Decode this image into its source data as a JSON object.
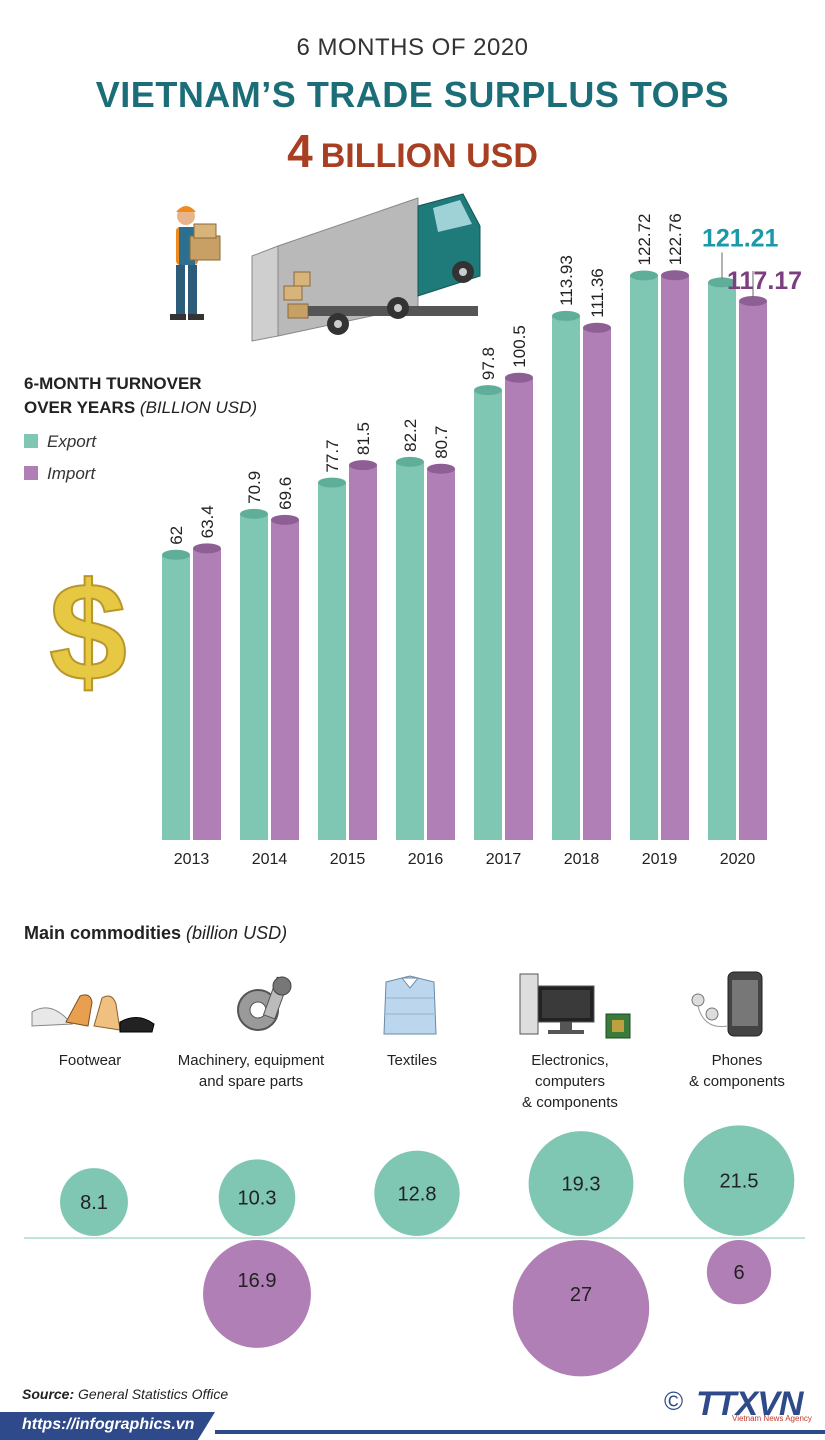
{
  "header": {
    "subtitle": "6 MONTHS OF 2020",
    "title": "VIETNAM’S TRADE SURPLUS  TOPS",
    "highlight_number": "4",
    "highlight_text": "BILLION USD"
  },
  "chart_data": {
    "type": "bar",
    "title": "6-MONTH TURNOVER OVER YEARS",
    "title_line1": "6-MONTH TURNOVER",
    "title_line2": "OVER YEARS",
    "unit": "(BILLION USD)",
    "categories": [
      "2013",
      "2014",
      "2015",
      "2016",
      "2017",
      "2018",
      "2019",
      "2020"
    ],
    "series": [
      {
        "name": "Export",
        "color": "#7fc7b3",
        "values": [
          62,
          70.9,
          77.7,
          82.2,
          97.8,
          113.93,
          122.72,
          121.21
        ]
      },
      {
        "name": "Import",
        "color": "#b07fb6",
        "values": [
          63.4,
          69.6,
          81.5,
          80.7,
          100.5,
          111.36,
          122.76,
          117.17
        ]
      }
    ],
    "labels": {
      "Export": [
        "62",
        "70.9",
        "77.7",
        "82.2",
        "97.8",
        "113.93",
        "122.72",
        "121.21"
      ],
      "Import": [
        "63.4",
        "69.6",
        "81.5",
        "80.7",
        "100.5",
        "111.36",
        "122.76",
        "117.17"
      ]
    },
    "highlight_colors": {
      "Export": "#1a9aa8",
      "Import": "#7b3f7f"
    },
    "ylim": [
      0,
      130
    ],
    "legend_position": "left",
    "grid": false
  },
  "commodities": {
    "title": "Main commodities",
    "unit": "(billion USD)",
    "export_color": "#7fc7b3",
    "import_color": "#b07fb6",
    "items": [
      {
        "label_lines": [
          "Footwear"
        ],
        "icon": "shoes-icon",
        "export": 8.1,
        "export_label": "8.1",
        "import": null,
        "import_label": ""
      },
      {
        "label_lines": [
          "Machinery, equipment",
          "and spare parts"
        ],
        "icon": "gears-icon",
        "export": 10.3,
        "export_label": "10.3",
        "import": 16.9,
        "import_label": "16.9"
      },
      {
        "label_lines": [
          "Textiles"
        ],
        "icon": "shirt-icon",
        "export": 12.8,
        "export_label": "12.8",
        "import": null,
        "import_label": ""
      },
      {
        "label_lines": [
          "Electronics,",
          "computers",
          "& components"
        ],
        "icon": "computer-icon",
        "export": 19.3,
        "export_label": "19.3",
        "import": 27,
        "import_label": "27"
      },
      {
        "label_lines": [
          "Phones",
          "& components"
        ],
        "icon": "phone-icon",
        "export": 21.5,
        "export_label": "21.5",
        "import": 6,
        "import_label": "6"
      }
    ]
  },
  "footer": {
    "source_label": "Source:",
    "source": "General Statistics Office",
    "url": "https://infographics.vn",
    "copyright": "©",
    "brand": "TTXVN",
    "brand_sub": "Vietnam News Agency"
  }
}
